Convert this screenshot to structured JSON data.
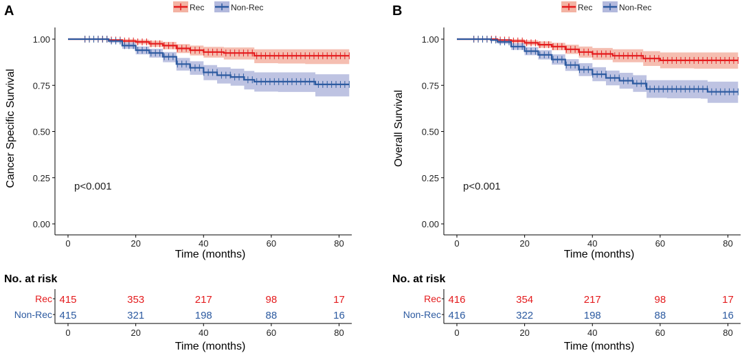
{
  "chart_data": [
    {
      "type": "line",
      "subtype": "kaplan-meier",
      "panel_label": "A",
      "ylabel": "Cancer Specific Survival",
      "xlabel": "Time (months)",
      "xlim": [
        0,
        84
      ],
      "ylim": [
        0,
        1.04
      ],
      "x_ticks": [
        "0",
        "20",
        "40",
        "60",
        "80"
      ],
      "y_ticks": [
        "0.00",
        "0.25",
        "0.50",
        "0.75",
        "1.00"
      ],
      "annotation": "p<0.001",
      "legend": [
        "Rec",
        "Non-Rec"
      ],
      "series": [
        {
          "name": "Rec",
          "color": "#e41a1c",
          "band_color": "#f3b3a3",
          "points": [
            [
              0,
              1.0
            ],
            [
              10,
              1.0
            ],
            [
              12,
              0.995
            ],
            [
              16,
              0.99
            ],
            [
              20,
              0.985
            ],
            [
              24,
              0.975
            ],
            [
              28,
              0.965
            ],
            [
              32,
              0.95
            ],
            [
              36,
              0.94
            ],
            [
              40,
              0.93
            ],
            [
              46,
              0.925
            ],
            [
              55,
              0.91
            ],
            [
              62,
              0.91
            ],
            [
              70,
              0.91
            ],
            [
              83,
              0.91
            ]
          ],
          "lower": [
            [
              0,
              1.0
            ],
            [
              10,
              0.998
            ],
            [
              12,
              0.99
            ],
            [
              16,
              0.98
            ],
            [
              20,
              0.972
            ],
            [
              24,
              0.958
            ],
            [
              28,
              0.945
            ],
            [
              32,
              0.925
            ],
            [
              36,
              0.912
            ],
            [
              40,
              0.9
            ],
            [
              46,
              0.89
            ],
            [
              55,
              0.87
            ],
            [
              62,
              0.868
            ],
            [
              70,
              0.865
            ],
            [
              83,
              0.865
            ]
          ],
          "upper": [
            [
              0,
              1.0
            ],
            [
              10,
              1.0
            ],
            [
              12,
              1.0
            ],
            [
              16,
              1.0
            ],
            [
              20,
              0.997
            ],
            [
              24,
              0.992
            ],
            [
              28,
              0.985
            ],
            [
              32,
              0.973
            ],
            [
              36,
              0.965
            ],
            [
              40,
              0.958
            ],
            [
              46,
              0.955
            ],
            [
              55,
              0.945
            ],
            [
              62,
              0.945
            ],
            [
              70,
              0.945
            ],
            [
              83,
              0.945
            ]
          ]
        },
        {
          "name": "Non-Rec",
          "color": "#2c5aa0",
          "band_color": "#b3b9dd",
          "points": [
            [
              0,
              1.0
            ],
            [
              10,
              1.0
            ],
            [
              12,
              0.99
            ],
            [
              16,
              0.965
            ],
            [
              20,
              0.94
            ],
            [
              24,
              0.925
            ],
            [
              28,
              0.905
            ],
            [
              32,
              0.865
            ],
            [
              36,
              0.845
            ],
            [
              40,
              0.82
            ],
            [
              44,
              0.805
            ],
            [
              48,
              0.795
            ],
            [
              52,
              0.78
            ],
            [
              55,
              0.77
            ],
            [
              62,
              0.77
            ],
            [
              73,
              0.755
            ],
            [
              83,
              0.755
            ]
          ],
          "lower": [
            [
              0,
              1.0
            ],
            [
              10,
              0.998
            ],
            [
              12,
              0.98
            ],
            [
              16,
              0.948
            ],
            [
              20,
              0.918
            ],
            [
              24,
              0.9
            ],
            [
              28,
              0.875
            ],
            [
              32,
              0.83
            ],
            [
              36,
              0.807
            ],
            [
              40,
              0.778
            ],
            [
              44,
              0.76
            ],
            [
              48,
              0.748
            ],
            [
              52,
              0.728
            ],
            [
              55,
              0.716
            ],
            [
              62,
              0.714
            ],
            [
              73,
              0.69
            ],
            [
              83,
              0.688
            ]
          ],
          "upper": [
            [
              0,
              1.0
            ],
            [
              10,
              1.0
            ],
            [
              12,
              0.998
            ],
            [
              16,
              0.982
            ],
            [
              20,
              0.96
            ],
            [
              24,
              0.948
            ],
            [
              28,
              0.93
            ],
            [
              32,
              0.898
            ],
            [
              36,
              0.88
            ],
            [
              40,
              0.86
            ],
            [
              44,
              0.848
            ],
            [
              48,
              0.84
            ],
            [
              52,
              0.828
            ],
            [
              55,
              0.82
            ],
            [
              62,
              0.82
            ],
            [
              73,
              0.81
            ],
            [
              83,
              0.81
            ]
          ]
        }
      ],
      "risk_table": {
        "title": "No. at risk",
        "xlabel": "Time (months)",
        "time_points": [
          0,
          20,
          40,
          60,
          80
        ],
        "rows": [
          {
            "name": "Rec",
            "color": "#e41a1c",
            "values": [
              "415",
              "353",
              "217",
              "98",
              "17"
            ]
          },
          {
            "name": "Non-Rec",
            "color": "#2c5aa0",
            "values": [
              "415",
              "321",
              "198",
              "88",
              "16"
            ]
          }
        ]
      }
    },
    {
      "type": "line",
      "subtype": "kaplan-meier",
      "panel_label": "B",
      "ylabel": "Overall Survival",
      "xlabel": "Time (months)",
      "xlim": [
        0,
        84
      ],
      "ylim": [
        0,
        1.04
      ],
      "x_ticks": [
        "0",
        "20",
        "40",
        "60",
        "80"
      ],
      "y_ticks": [
        "0.00",
        "0.25",
        "0.50",
        "0.75",
        "1.00"
      ],
      "annotation": "p<0.001",
      "legend": [
        "Rec",
        "Non-Rec"
      ],
      "series": [
        {
          "name": "Rec",
          "color": "#e41a1c",
          "band_color": "#f3b3a3",
          "points": [
            [
              0,
              1.0
            ],
            [
              10,
              1.0
            ],
            [
              12,
              0.995
            ],
            [
              16,
              0.99
            ],
            [
              20,
              0.98
            ],
            [
              24,
              0.97
            ],
            [
              28,
              0.96
            ],
            [
              32,
              0.945
            ],
            [
              36,
              0.93
            ],
            [
              40,
              0.92
            ],
            [
              46,
              0.91
            ],
            [
              55,
              0.895
            ],
            [
              60,
              0.885
            ],
            [
              70,
              0.885
            ],
            [
              83,
              0.885
            ]
          ],
          "lower": [
            [
              0,
              1.0
            ],
            [
              10,
              0.998
            ],
            [
              12,
              0.99
            ],
            [
              16,
              0.98
            ],
            [
              20,
              0.967
            ],
            [
              24,
              0.953
            ],
            [
              28,
              0.94
            ],
            [
              32,
              0.92
            ],
            [
              36,
              0.9
            ],
            [
              40,
              0.888
            ],
            [
              46,
              0.875
            ],
            [
              55,
              0.855
            ],
            [
              60,
              0.842
            ],
            [
              70,
              0.84
            ],
            [
              83,
              0.84
            ]
          ],
          "upper": [
            [
              0,
              1.0
            ],
            [
              10,
              1.0
            ],
            [
              12,
              1.0
            ],
            [
              16,
              1.0
            ],
            [
              20,
              0.994
            ],
            [
              24,
              0.988
            ],
            [
              28,
              0.98
            ],
            [
              32,
              0.97
            ],
            [
              36,
              0.96
            ],
            [
              40,
              0.952
            ],
            [
              46,
              0.945
            ],
            [
              55,
              0.935
            ],
            [
              60,
              0.928
            ],
            [
              70,
              0.928
            ],
            [
              83,
              0.928
            ]
          ]
        },
        {
          "name": "Non-Rec",
          "color": "#2c5aa0",
          "band_color": "#b3b9dd",
          "points": [
            [
              0,
              1.0
            ],
            [
              10,
              0.995
            ],
            [
              12,
              0.985
            ],
            [
              16,
              0.96
            ],
            [
              20,
              0.935
            ],
            [
              24,
              0.915
            ],
            [
              28,
              0.89
            ],
            [
              32,
              0.86
            ],
            [
              36,
              0.835
            ],
            [
              40,
              0.81
            ],
            [
              44,
              0.79
            ],
            [
              48,
              0.775
            ],
            [
              52,
              0.76
            ],
            [
              56,
              0.73
            ],
            [
              62,
              0.73
            ],
            [
              72,
              0.73
            ],
            [
              74,
              0.715
            ],
            [
              83,
              0.715
            ]
          ],
          "lower": [
            [
              0,
              1.0
            ],
            [
              10,
              0.99
            ],
            [
              12,
              0.975
            ],
            [
              16,
              0.942
            ],
            [
              20,
              0.913
            ],
            [
              24,
              0.89
            ],
            [
              28,
              0.862
            ],
            [
              32,
              0.828
            ],
            [
              36,
              0.8
            ],
            [
              40,
              0.772
            ],
            [
              44,
              0.75
            ],
            [
              48,
              0.732
            ],
            [
              52,
              0.715
            ],
            [
              56,
              0.682
            ],
            [
              62,
              0.68
            ],
            [
              72,
              0.678
            ],
            [
              74,
              0.655
            ],
            [
              83,
              0.652
            ]
          ],
          "upper": [
            [
              0,
              1.0
            ],
            [
              10,
              1.0
            ],
            [
              12,
              0.995
            ],
            [
              16,
              0.978
            ],
            [
              20,
              0.957
            ],
            [
              24,
              0.94
            ],
            [
              28,
              0.918
            ],
            [
              32,
              0.892
            ],
            [
              36,
              0.87
            ],
            [
              40,
              0.848
            ],
            [
              44,
              0.83
            ],
            [
              48,
              0.818
            ],
            [
              52,
              0.805
            ],
            [
              56,
              0.778
            ],
            [
              62,
              0.778
            ],
            [
              72,
              0.778
            ],
            [
              74,
              0.77
            ],
            [
              83,
              0.77
            ]
          ]
        }
      ],
      "risk_table": {
        "title": "No. at risk",
        "xlabel": "Time (months)",
        "time_points": [
          0,
          20,
          40,
          60,
          80
        ],
        "rows": [
          {
            "name": "Rec",
            "color": "#e41a1c",
            "values": [
              "416",
              "354",
              "217",
              "98",
              "17"
            ]
          },
          {
            "name": "Non-Rec",
            "color": "#2c5aa0",
            "values": [
              "416",
              "322",
              "198",
              "88",
              "16"
            ]
          }
        ]
      }
    }
  ]
}
